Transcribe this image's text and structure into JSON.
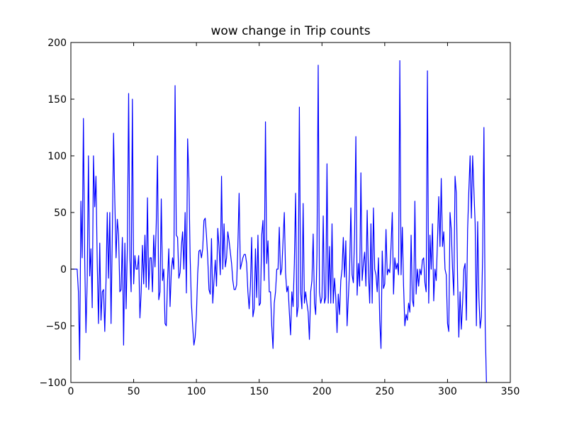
{
  "chart_data": {
    "type": "line",
    "title": "wow change in Trip counts",
    "xlabel": "",
    "ylabel": "",
    "xlim": [
      0,
      350
    ],
    "ylim": [
      -100,
      200
    ],
    "xticks": [
      0,
      50,
      100,
      150,
      200,
      250,
      300,
      350
    ],
    "yticks": [
      -100,
      -50,
      0,
      50,
      100,
      150,
      200
    ],
    "xtick_labels": [
      "0",
      "50",
      "100",
      "150",
      "200",
      "250",
      "300",
      "350"
    ],
    "ytick_labels": [
      "−100",
      "−50",
      "0",
      "50",
      "100",
      "150",
      "200"
    ],
    "grid": false,
    "legend": "none",
    "line_color": "#0000ff",
    "series": [
      {
        "values": [
          0,
          0,
          0,
          0,
          0,
          0,
          -20,
          -80,
          60,
          10,
          133,
          10,
          -56,
          -10,
          100,
          -6,
          18,
          -34,
          100,
          55,
          82,
          5,
          -48,
          23,
          -45,
          -20,
          -18,
          -55,
          -10,
          50,
          -8,
          50,
          -48,
          30,
          120,
          60,
          10,
          44,
          30,
          -20,
          -18,
          28,
          -67,
          23,
          -35,
          20,
          155,
          10,
          -20,
          150,
          -13,
          12,
          0,
          0,
          12,
          -43,
          -20,
          21,
          -13,
          30,
          -16,
          63,
          -18,
          10,
          10,
          -20,
          30,
          2,
          40,
          100,
          -27,
          -20,
          62,
          -10,
          0,
          -48,
          -50,
          -10,
          18,
          -33,
          -2,
          10,
          0,
          162,
          30,
          28,
          -8,
          -3,
          20,
          33,
          0,
          50,
          -21,
          115,
          80,
          10,
          -30,
          -50,
          -67,
          -60,
          -40,
          -4,
          16,
          17,
          10,
          18,
          43,
          45,
          30,
          10,
          -18,
          -22,
          27,
          -30,
          -10,
          8,
          -15,
          36,
          20,
          -5,
          82,
          0,
          40,
          2,
          10,
          33,
          25,
          15,
          5,
          -10,
          -18,
          -18,
          -14,
          20,
          67,
          0,
          5,
          10,
          13,
          13,
          5,
          -20,
          -35,
          -15,
          28,
          -42,
          -35,
          18,
          -25,
          30,
          -32,
          -30,
          30,
          43,
          -10,
          130,
          5,
          25,
          -20,
          -20,
          -50,
          -70,
          -30,
          -20,
          0,
          0,
          37,
          -5,
          0,
          25,
          50,
          -3,
          -20,
          -15,
          -38,
          -58,
          -20,
          -33,
          5,
          67,
          -42,
          -33,
          143,
          -20,
          -35,
          58,
          -30,
          -20,
          -30,
          -38,
          -62,
          -20,
          -10,
          31,
          -30,
          -40,
          13,
          180,
          -20,
          -30,
          -25,
          47,
          -30,
          -25,
          93,
          -30,
          20,
          -30,
          40,
          -30,
          -8,
          -25,
          -56,
          -22,
          -40,
          -10,
          0,
          28,
          -7,
          25,
          -50,
          -25,
          0,
          54,
          -5,
          -12,
          32,
          117,
          -23,
          5,
          -15,
          85,
          -10,
          5,
          15,
          -15,
          52,
          -3,
          -30,
          40,
          -30,
          54,
          0,
          -5,
          -20,
          10,
          -45,
          -70,
          16,
          -17,
          -13,
          35,
          -5,
          0,
          -3,
          20,
          50,
          -22,
          10,
          0,
          5,
          -5,
          184,
          -5,
          37,
          -15,
          -50,
          -40,
          -45,
          -30,
          -38,
          30,
          -27,
          -33,
          60,
          -22,
          0,
          -15,
          0,
          -5,
          8,
          10,
          -12,
          -20,
          175,
          -30,
          30,
          0,
          40,
          -28,
          0,
          -10,
          25,
          64,
          20,
          80,
          20,
          33,
          0,
          -5,
          -48,
          -55,
          50,
          35,
          0,
          -23,
          82,
          67,
          -8,
          -60,
          -20,
          -53,
          -30,
          0,
          5,
          -45,
          35,
          70,
          100,
          45,
          100,
          70,
          40,
          -50,
          42,
          -25,
          -52,
          -42,
          15,
          125,
          -50,
          -100,
          -102,
          -102,
          -102,
          -102
        ]
      }
    ]
  }
}
